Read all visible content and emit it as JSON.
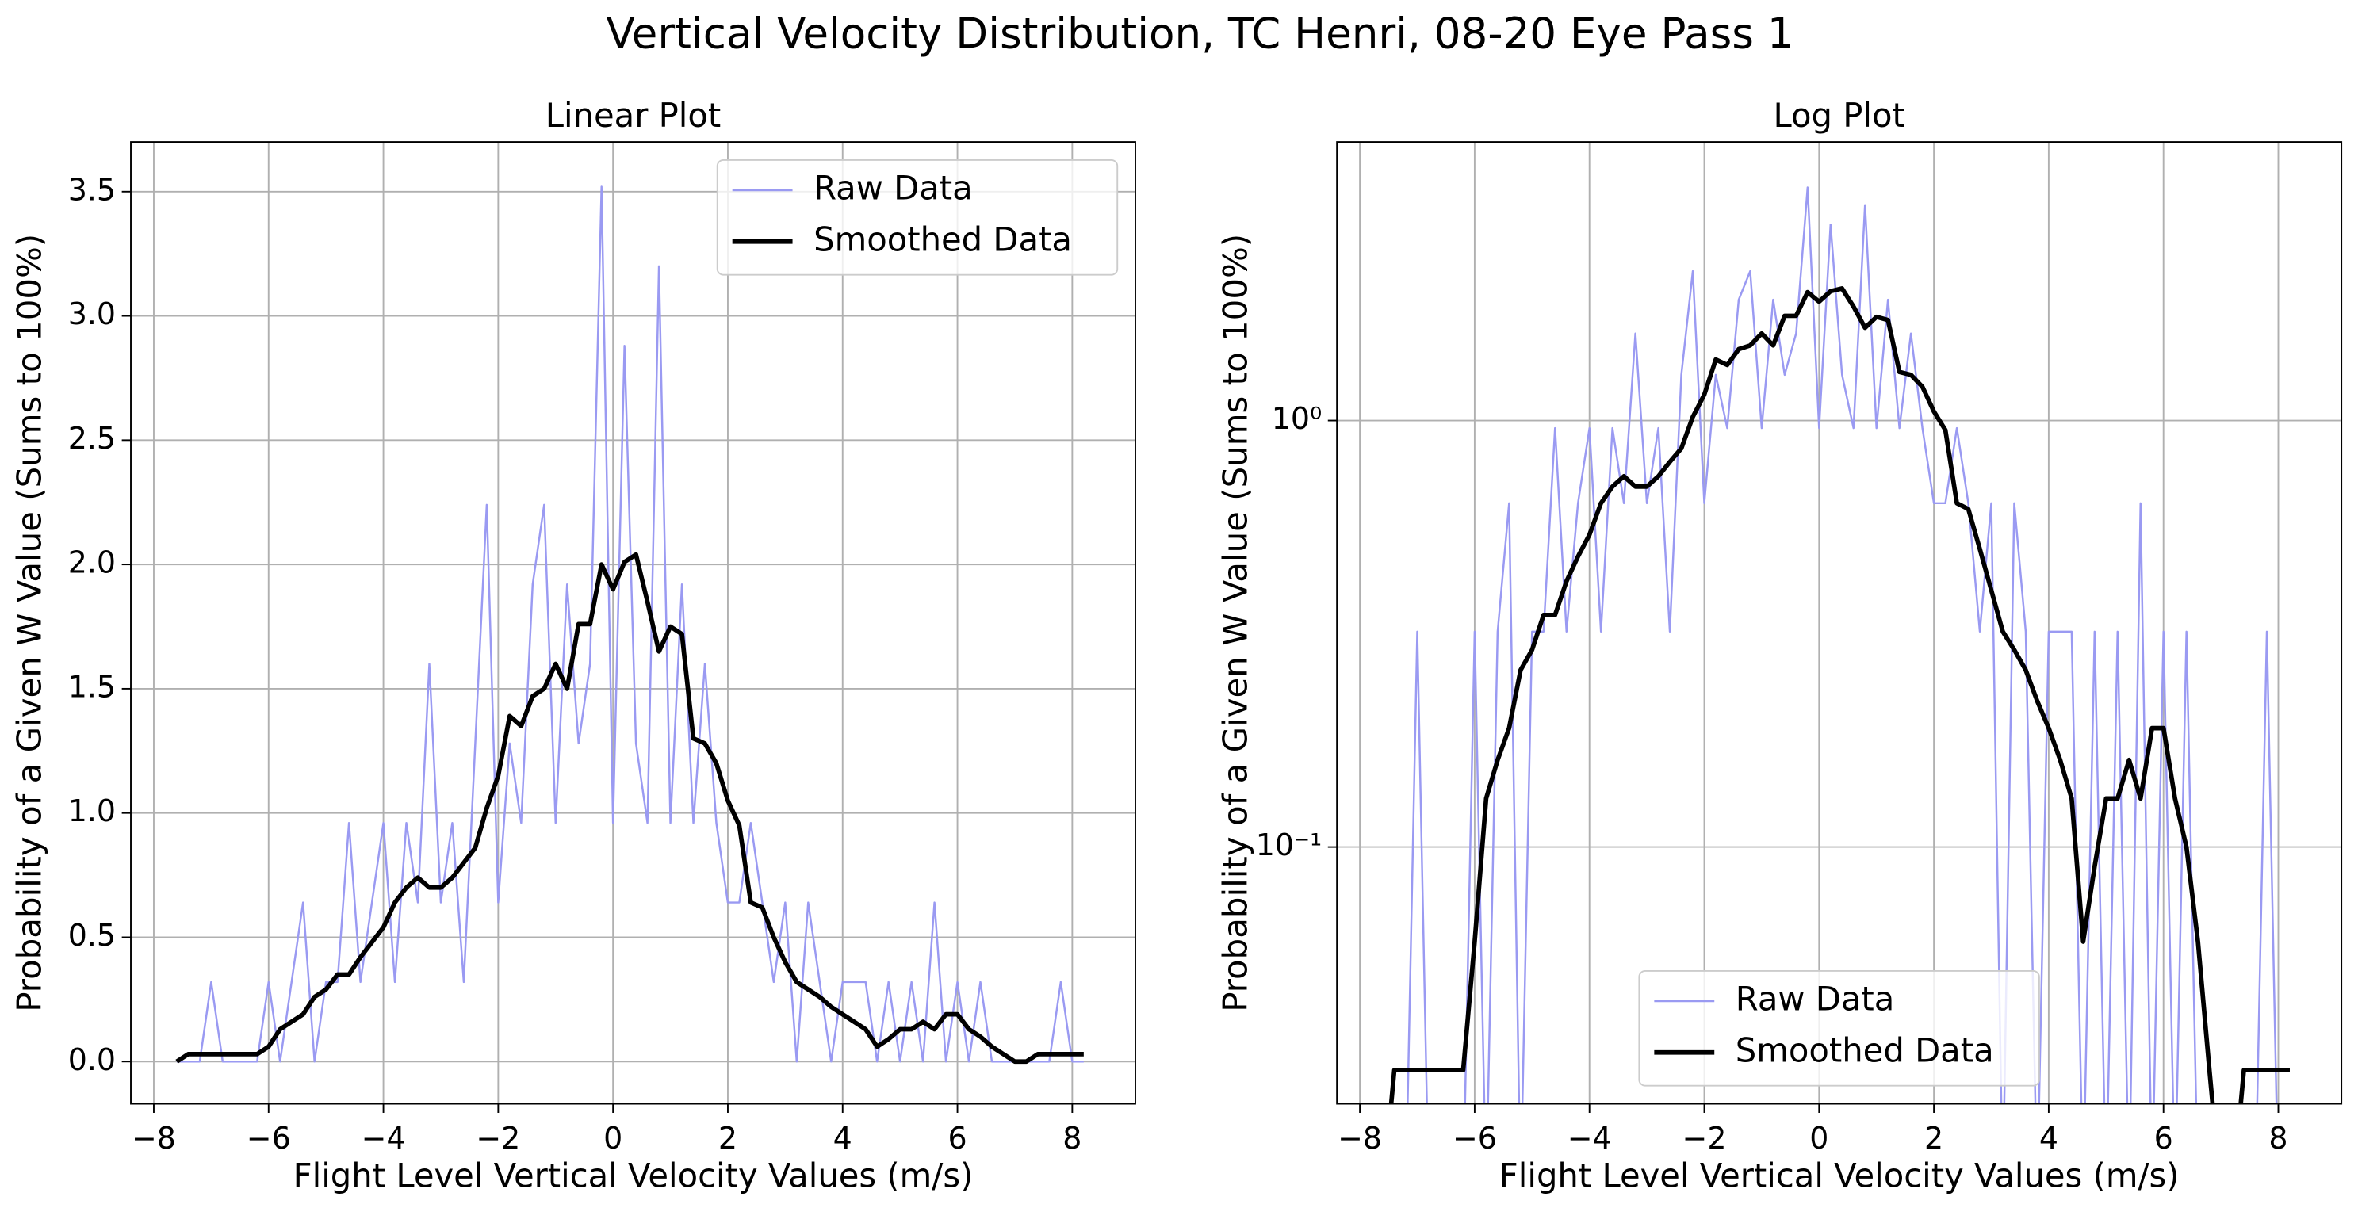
{
  "title": "Vertical Velocity Distribution, TC Henri, 08-20 Eye Pass 1",
  "chart_data": [
    {
      "type": "line",
      "title": "Linear Plot",
      "xlabel": "Flight Level Vertical Velocity Values (m/s)",
      "ylabel": "Probability of a Given W Value (Sums to 100%)",
      "log_y": false,
      "grid": true,
      "legend": "upper right",
      "xlim": [
        -8.4,
        9.1
      ],
      "ylim": [
        -0.17,
        3.7
      ],
      "xticks": [
        {
          "value": -8,
          "label": "−8"
        },
        {
          "value": -6,
          "label": "−6"
        },
        {
          "value": -4,
          "label": "−4"
        },
        {
          "value": -2,
          "label": "−2"
        },
        0,
        2,
        4,
        6,
        8
      ],
      "yticks": [
        {
          "value": 0,
          "label": "0.0"
        },
        0.5,
        {
          "value": 1,
          "label": "1.0"
        },
        1.5,
        {
          "value": 2,
          "label": "2.0"
        },
        2.5,
        {
          "value": 3,
          "label": "3.0"
        },
        3.5
      ],
      "x": [
        -7.6,
        -7.4,
        -7.2,
        -7.0,
        -6.8,
        -6.6,
        -6.4,
        -6.2,
        -6.0,
        -5.8,
        -5.6,
        -5.4,
        -5.2,
        -5.0,
        -4.8,
        -4.6,
        -4.4,
        -4.2,
        -4.0,
        -3.8,
        -3.6,
        -3.4,
        -3.2,
        -3.0,
        -2.8,
        -2.6,
        -2.4,
        -2.2,
        -2.0,
        -1.8,
        -1.6,
        -1.4,
        -1.2,
        -1.0,
        -0.8,
        -0.6,
        -0.4,
        -0.2,
        0.0,
        0.2,
        0.4,
        0.6,
        0.8,
        1.0,
        1.2,
        1.4,
        1.6,
        1.8,
        2.0,
        2.2,
        2.4,
        2.6,
        2.8,
        3.0,
        3.2,
        3.4,
        3.6,
        3.8,
        4.0,
        4.2,
        4.4,
        4.6,
        4.8,
        5.0,
        5.2,
        5.4,
        5.6,
        5.8,
        6.0,
        6.2,
        6.4,
        6.6,
        6.8,
        7.0,
        7.2,
        7.4,
        7.6,
        7.8,
        8.0,
        8.2
      ],
      "series": [
        {
          "name": "Raw Data",
          "color": "#9a9af2",
          "width": 1.3,
          "values": [
            0,
            0,
            0,
            0.32,
            0,
            0,
            0,
            0,
            0.32,
            0,
            0.32,
            0.64,
            0,
            0.32,
            0.32,
            0.96,
            0.32,
            0.64,
            0.96,
            0.32,
            0.96,
            0.64,
            1.6,
            0.64,
            0.96,
            0.32,
            1.28,
            2.24,
            0.64,
            1.28,
            0.96,
            1.92,
            2.24,
            0.96,
            1.92,
            1.28,
            1.6,
            3.52,
            0.96,
            2.88,
            1.28,
            0.96,
            3.2,
            0.96,
            1.92,
            0.96,
            1.6,
            0.96,
            0.64,
            0.64,
            0.96,
            0.64,
            0.32,
            0.64,
            0,
            0.64,
            0.32,
            0,
            0.32,
            0.32,
            0.32,
            0,
            0.32,
            0,
            0.32,
            0,
            0.64,
            0,
            0.32,
            0,
            0.32,
            0,
            0,
            0,
            0,
            0,
            0,
            0.32,
            0,
            0
          ]
        },
        {
          "name": "Smoothed Data",
          "color": "#000000",
          "width": 3,
          "values": [
            0,
            0.03,
            0.03,
            0.03,
            0.03,
            0.03,
            0.03,
            0.03,
            0.06,
            0.13,
            0.16,
            0.19,
            0.26,
            0.29,
            0.35,
            0.35,
            0.42,
            0.48,
            0.54,
            0.64,
            0.7,
            0.74,
            0.7,
            0.7,
            0.74,
            0.8,
            0.86,
            1.02,
            1.15,
            1.39,
            1.35,
            1.47,
            1.5,
            1.6,
            1.5,
            1.76,
            1.76,
            2.0,
            1.9,
            2.01,
            2.04,
            1.85,
            1.65,
            1.75,
            1.72,
            1.3,
            1.28,
            1.2,
            1.05,
            0.95,
            0.64,
            0.62,
            0.5,
            0.4,
            0.32,
            0.29,
            0.26,
            0.22,
            0.19,
            0.16,
            0.13,
            0.06,
            0.09,
            0.13,
            0.13,
            0.16,
            0.13,
            0.19,
            0.19,
            0.13,
            0.1,
            0.06,
            0.03,
            0,
            0,
            0.03,
            0.03,
            0.03,
            0.03,
            0.03
          ]
        }
      ]
    },
    {
      "type": "line",
      "title": "Log Plot",
      "xlabel": "Flight Level Vertical Velocity Values (m/s)",
      "ylabel": "Probability of a Given W Value (Sums to 100%)",
      "log_y": true,
      "grid": true,
      "legend": "lower center",
      "xlim": [
        -8.4,
        9.1
      ],
      "ylim": [
        0.025,
        4.5
      ],
      "xticks": [
        {
          "value": -8,
          "label": "−8"
        },
        {
          "value": -6,
          "label": "−6"
        },
        {
          "value": -4,
          "label": "−4"
        },
        {
          "value": -2,
          "label": "−2"
        },
        0,
        2,
        4,
        6,
        8
      ],
      "yticks": [
        {
          "value": 0.1,
          "label": "10⁻¹"
        },
        {
          "value": 1,
          "label": "10⁰"
        }
      ],
      "x": [
        -7.6,
        -7.4,
        -7.2,
        -7.0,
        -6.8,
        -6.6,
        -6.4,
        -6.2,
        -6.0,
        -5.8,
        -5.6,
        -5.4,
        -5.2,
        -5.0,
        -4.8,
        -4.6,
        -4.4,
        -4.2,
        -4.0,
        -3.8,
        -3.6,
        -3.4,
        -3.2,
        -3.0,
        -2.8,
        -2.6,
        -2.4,
        -2.2,
        -2.0,
        -1.8,
        -1.6,
        -1.4,
        -1.2,
        -1.0,
        -0.8,
        -0.6,
        -0.4,
        -0.2,
        0.0,
        0.2,
        0.4,
        0.6,
        0.8,
        1.0,
        1.2,
        1.4,
        1.6,
        1.8,
        2.0,
        2.2,
        2.4,
        2.6,
        2.8,
        3.0,
        3.2,
        3.4,
        3.6,
        3.8,
        4.0,
        4.2,
        4.4,
        4.6,
        4.8,
        5.0,
        5.2,
        5.4,
        5.6,
        5.8,
        6.0,
        6.2,
        6.4,
        6.6,
        6.8,
        7.0,
        7.2,
        7.4,
        7.6,
        7.8,
        8.0,
        8.2
      ],
      "series": [
        {
          "name": "Raw Data",
          "color": "#9a9af2",
          "width": 1.3,
          "values": [
            0,
            0,
            0,
            0.32,
            0,
            0,
            0,
            0,
            0.32,
            0,
            0.32,
            0.64,
            0,
            0.32,
            0.32,
            0.96,
            0.32,
            0.64,
            0.96,
            0.32,
            0.96,
            0.64,
            1.6,
            0.64,
            0.96,
            0.32,
            1.28,
            2.24,
            0.64,
            1.28,
            0.96,
            1.92,
            2.24,
            0.96,
            1.92,
            1.28,
            1.6,
            3.52,
            0.96,
            2.88,
            1.28,
            0.96,
            3.2,
            0.96,
            1.92,
            0.96,
            1.6,
            0.96,
            0.64,
            0.64,
            0.96,
            0.64,
            0.32,
            0.64,
            0,
            0.64,
            0.32,
            0,
            0.32,
            0.32,
            0.32,
            0,
            0.32,
            0,
            0.32,
            0,
            0.64,
            0,
            0.32,
            0,
            0.32,
            0,
            0,
            0,
            0,
            0,
            0,
            0.32,
            0,
            0
          ]
        },
        {
          "name": "Smoothed Data",
          "color": "#000000",
          "width": 3,
          "values": [
            0,
            0.03,
            0.03,
            0.03,
            0.03,
            0.03,
            0.03,
            0.03,
            0.06,
            0.13,
            0.16,
            0.19,
            0.26,
            0.29,
            0.35,
            0.35,
            0.42,
            0.48,
            0.54,
            0.64,
            0.7,
            0.74,
            0.7,
            0.7,
            0.74,
            0.8,
            0.86,
            1.02,
            1.15,
            1.39,
            1.35,
            1.47,
            1.5,
            1.6,
            1.5,
            1.76,
            1.76,
            2.0,
            1.9,
            2.01,
            2.04,
            1.85,
            1.65,
            1.75,
            1.72,
            1.3,
            1.28,
            1.2,
            1.05,
            0.95,
            0.64,
            0.62,
            0.5,
            0.4,
            0.32,
            0.29,
            0.26,
            0.22,
            0.19,
            0.16,
            0.13,
            0.06,
            0.09,
            0.13,
            0.13,
            0.16,
            0.13,
            0.19,
            0.19,
            0.13,
            0.1,
            0.06,
            0.03,
            0,
            0,
            0.03,
            0.03,
            0.03,
            0.03,
            0.03
          ]
        }
      ]
    }
  ]
}
